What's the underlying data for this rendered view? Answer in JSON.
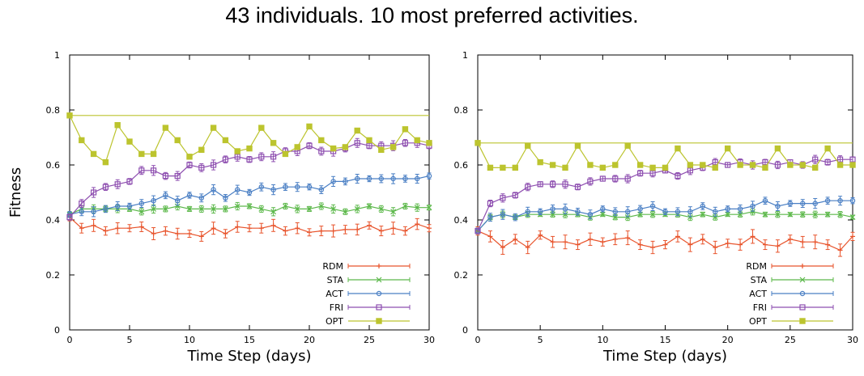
{
  "title": "43 individuals. 10 most preferred activities.",
  "ylabel": "Fitness",
  "xlabel": "Time Step (days)",
  "colors": {
    "RDM": "#e8542c",
    "STA": "#5cb84a",
    "ACT": "#4a7fc4",
    "FRI": "#8e4fb0",
    "OPT": "#bcc42e"
  },
  "chart_data": [
    {
      "type": "line",
      "title": "",
      "xlabel": "Time Step (days)",
      "ylabel": "Fitness",
      "xlim": [
        0,
        30
      ],
      "ylim": [
        0,
        1
      ],
      "xticks": [
        0,
        5,
        10,
        15,
        20,
        25,
        30
      ],
      "yticks": [
        0,
        0.2,
        0.4,
        0.6,
        0.8,
        1
      ],
      "ytick_labels": [
        "0",
        "0.2",
        "0.4",
        "0.6",
        "0.8",
        "1"
      ],
      "legend_position": "bottom-right",
      "reference_line": 0.78,
      "x": [
        0,
        1,
        2,
        3,
        4,
        5,
        6,
        7,
        8,
        9,
        10,
        11,
        12,
        13,
        14,
        15,
        16,
        17,
        18,
        19,
        20,
        21,
        22,
        23,
        24,
        25,
        26,
        27,
        28,
        29,
        30
      ],
      "series": [
        {
          "name": "RDM",
          "marker": "plus",
          "err": 0.022,
          "values": [
            0.41,
            0.37,
            0.38,
            0.36,
            0.37,
            0.37,
            0.375,
            0.35,
            0.36,
            0.35,
            0.35,
            0.34,
            0.37,
            0.35,
            0.375,
            0.37,
            0.37,
            0.38,
            0.36,
            0.37,
            0.355,
            0.36,
            0.36,
            0.365,
            0.365,
            0.38,
            0.36,
            0.37,
            0.36,
            0.385,
            0.37
          ]
        },
        {
          "name": "STA",
          "marker": "cross",
          "err": 0.015,
          "values": [
            0.42,
            0.44,
            0.44,
            0.44,
            0.44,
            0.44,
            0.43,
            0.44,
            0.44,
            0.45,
            0.44,
            0.44,
            0.44,
            0.44,
            0.45,
            0.45,
            0.44,
            0.43,
            0.45,
            0.44,
            0.44,
            0.45,
            0.44,
            0.43,
            0.44,
            0.45,
            0.44,
            0.43,
            0.45,
            0.445,
            0.445
          ]
        },
        {
          "name": "ACT",
          "marker": "circle",
          "err": 0.018,
          "values": [
            0.42,
            0.43,
            0.43,
            0.44,
            0.45,
            0.45,
            0.46,
            0.47,
            0.49,
            0.47,
            0.49,
            0.48,
            0.51,
            0.48,
            0.51,
            0.5,
            0.52,
            0.51,
            0.52,
            0.52,
            0.52,
            0.51,
            0.54,
            0.54,
            0.55,
            0.55,
            0.55,
            0.55,
            0.55,
            0.55,
            0.56
          ]
        },
        {
          "name": "FRI",
          "marker": "square",
          "err": 0.018,
          "values": [
            0.41,
            0.46,
            0.5,
            0.52,
            0.53,
            0.54,
            0.58,
            0.58,
            0.56,
            0.56,
            0.6,
            0.59,
            0.6,
            0.62,
            0.63,
            0.62,
            0.63,
            0.63,
            0.65,
            0.65,
            0.67,
            0.65,
            0.65,
            0.66,
            0.68,
            0.67,
            0.67,
            0.67,
            0.68,
            0.68,
            0.67
          ]
        },
        {
          "name": "OPT",
          "marker": "filled-square",
          "err": 0,
          "values": [
            0.78,
            0.69,
            0.64,
            0.61,
            0.745,
            0.685,
            0.64,
            0.64,
            0.735,
            0.69,
            0.63,
            0.655,
            0.735,
            0.69,
            0.65,
            0.66,
            0.735,
            0.68,
            0.64,
            0.665,
            0.74,
            0.69,
            0.66,
            0.665,
            0.725,
            0.69,
            0.655,
            0.665,
            0.73,
            0.69,
            0.68
          ]
        }
      ]
    },
    {
      "type": "line",
      "title": "",
      "xlabel": "Time Step (days)",
      "ylabel": "",
      "xlim": [
        0,
        30
      ],
      "ylim": [
        0,
        1
      ],
      "xticks": [
        0,
        5,
        10,
        15,
        20,
        25,
        30
      ],
      "yticks": [
        0,
        0.2,
        0.4,
        0.6,
        0.8,
        1
      ],
      "ytick_labels": [
        "0",
        "0.2",
        "0.4",
        "0.6",
        "0.8",
        "1"
      ],
      "legend_position": "bottom-right",
      "reference_line": 0.68,
      "x": [
        0,
        1,
        2,
        3,
        4,
        5,
        6,
        7,
        8,
        9,
        10,
        11,
        12,
        13,
        14,
        15,
        16,
        17,
        18,
        19,
        20,
        21,
        22,
        23,
        24,
        25,
        26,
        27,
        28,
        29,
        30
      ],
      "series": [
        {
          "name": "RDM",
          "marker": "plus",
          "err": 0.025,
          "values": [
            0.36,
            0.34,
            0.3,
            0.33,
            0.3,
            0.345,
            0.32,
            0.32,
            0.31,
            0.33,
            0.32,
            0.33,
            0.335,
            0.31,
            0.3,
            0.31,
            0.34,
            0.31,
            0.33,
            0.3,
            0.315,
            0.31,
            0.34,
            0.31,
            0.305,
            0.33,
            0.32,
            0.32,
            0.31,
            0.29,
            0.34
          ]
        },
        {
          "name": "STA",
          "marker": "cross",
          "err": 0.012,
          "values": [
            0.36,
            0.41,
            0.42,
            0.41,
            0.42,
            0.42,
            0.42,
            0.42,
            0.42,
            0.41,
            0.42,
            0.41,
            0.41,
            0.42,
            0.42,
            0.42,
            0.42,
            0.41,
            0.42,
            0.41,
            0.42,
            0.42,
            0.43,
            0.42,
            0.42,
            0.42,
            0.42,
            0.42,
            0.42,
            0.42,
            0.41
          ]
        },
        {
          "name": "ACT",
          "marker": "circle",
          "err": 0.018,
          "values": [
            0.36,
            0.41,
            0.42,
            0.41,
            0.43,
            0.43,
            0.44,
            0.44,
            0.43,
            0.42,
            0.44,
            0.43,
            0.43,
            0.44,
            0.45,
            0.43,
            0.43,
            0.43,
            0.45,
            0.43,
            0.44,
            0.44,
            0.45,
            0.47,
            0.45,
            0.46,
            0.46,
            0.46,
            0.47,
            0.47,
            0.47
          ]
        },
        {
          "name": "FRI",
          "marker": "square",
          "err": 0.015,
          "values": [
            0.36,
            0.46,
            0.48,
            0.49,
            0.52,
            0.53,
            0.53,
            0.53,
            0.52,
            0.54,
            0.55,
            0.55,
            0.55,
            0.57,
            0.57,
            0.58,
            0.56,
            0.58,
            0.59,
            0.61,
            0.6,
            0.61,
            0.6,
            0.61,
            0.6,
            0.61,
            0.6,
            0.62,
            0.61,
            0.62,
            0.62
          ]
        },
        {
          "name": "OPT",
          "marker": "filled-square",
          "err": 0,
          "values": [
            0.68,
            0.59,
            0.59,
            0.59,
            0.67,
            0.61,
            0.6,
            0.59,
            0.67,
            0.6,
            0.59,
            0.6,
            0.67,
            0.6,
            0.59,
            0.59,
            0.66,
            0.6,
            0.6,
            0.59,
            0.66,
            0.6,
            0.6,
            0.59,
            0.66,
            0.6,
            0.6,
            0.59,
            0.66,
            0.6,
            0.6
          ]
        }
      ]
    }
  ]
}
